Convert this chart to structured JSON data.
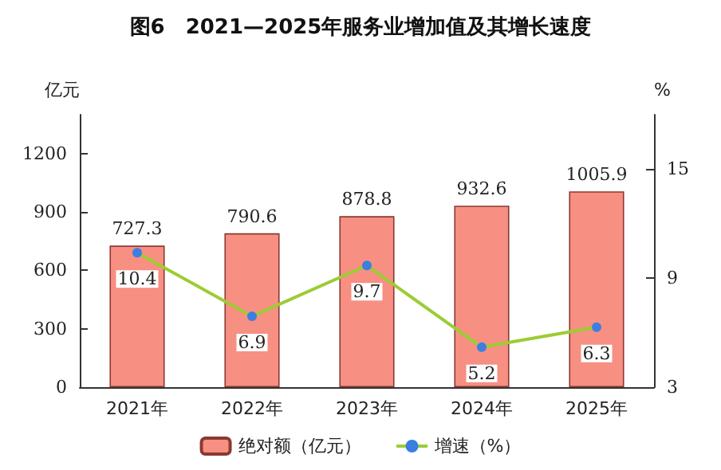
{
  "chart_data": {
    "type": "bar",
    "title": "图6　2021—2025年服务业增加值及其增长速度",
    "ylabel": "亿元",
    "y2label": "%",
    "categories": [
      "2021年",
      "2022年",
      "2023年",
      "2024年",
      "2025年"
    ],
    "series": [
      {
        "name": "绝对额（亿元）",
        "color": "#f78f83",
        "values": [
          727.3,
          790.6,
          878.8,
          932.6,
          1005.9
        ]
      },
      {
        "name": "增速（%）",
        "type": "line",
        "axis": "y2",
        "color": "#9ccc34",
        "marker": "circle",
        "values": [
          10.4,
          6.9,
          9.7,
          5.2,
          6.3
        ]
      }
    ],
    "ylim": [
      0,
      1400
    ],
    "yticks": [
      0,
      300,
      600,
      900,
      1200
    ],
    "y2lim": [
      3,
      18
    ],
    "y2ticks": [
      3,
      9,
      15
    ],
    "grid": false,
    "legend": "bottom",
    "data_labels": true
  }
}
